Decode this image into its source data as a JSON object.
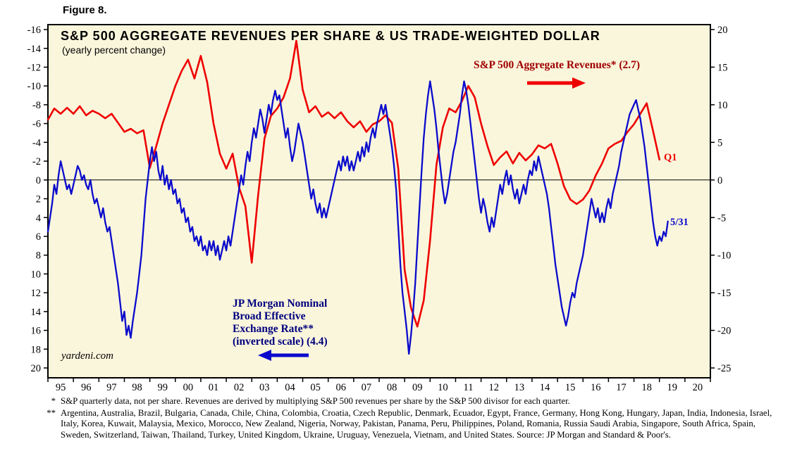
{
  "figure_label": "Figure 8.",
  "chart": {
    "title": "S&P 500 AGGREGATE REVENUES PER SHARE & US TRADE-WEIGHTED DOLLAR",
    "subtitle": "(yearly percent change)",
    "watermark": "yardeni.com",
    "annotations": {
      "revenues_label": "S&P 500 Aggregate Revenues* (2.7)",
      "revenues_latest": "Q1",
      "fx_line1": "JP Morgan Nominal",
      "fx_line2": "Broad Effective",
      "fx_line3": "Exchange Rate**",
      "fx_line4": "(inverted scale) (4.4)",
      "fx_latest": "5/31"
    },
    "colors": {
      "plot_background": "#FAF6DC",
      "revenues_line": "#EE0000",
      "revenues_text": "#A00000",
      "fx_line": "#0A0ACC",
      "fx_text": "#00007E"
    }
  },
  "chart_data": {
    "type": "line",
    "title": "S&P 500 AGGREGATE REVENUES PER SHARE & US TRADE-WEIGHTED DOLLAR",
    "subtitle": "(yearly percent change)",
    "x_tick_labels": [
      "95",
      "96",
      "97",
      "98",
      "99",
      "00",
      "01",
      "02",
      "03",
      "04",
      "05",
      "06",
      "07",
      "08",
      "09",
      "10",
      "11",
      "12",
      "13",
      "14",
      "15",
      "16",
      "17",
      "18",
      "19",
      "20"
    ],
    "x_range_years": [
      1995,
      2021
    ],
    "left_axis": {
      "ticks": [
        -16,
        -14,
        -12,
        -10,
        -8,
        -6,
        -4,
        -2,
        0,
        2,
        4,
        6,
        8,
        10,
        12,
        14,
        16,
        18,
        20
      ],
      "range": [
        -16,
        20
      ],
      "inverted": true,
      "applies_to": "JP Morgan Nominal Broad Effective Exchange Rate"
    },
    "right_axis": {
      "ticks": [
        20,
        15,
        10,
        5,
        0,
        -5,
        -10,
        -15,
        -20,
        -25
      ],
      "range": [
        -25,
        20
      ],
      "inverted": false,
      "applies_to": "S&P 500 Aggregate Revenues"
    },
    "zero_line": true,
    "legend_position": "annotations-inside-plot",
    "series": [
      {
        "id": "revenues",
        "name": "S&P 500 Aggregate Revenues (yearly % change)",
        "axis": "right",
        "color": "#EE0000",
        "width": 2.6,
        "latest_label": "Q1",
        "latest_value": 2.7,
        "start_year": 1995.0,
        "step_years": 0.25,
        "values": [
          8.0,
          9.5,
          8.8,
          9.6,
          8.8,
          9.8,
          8.6,
          9.2,
          8.8,
          8.2,
          8.8,
          7.6,
          6.4,
          6.8,
          6.2,
          6.6,
          1.6,
          4.5,
          7.5,
          10.0,
          12.5,
          14.5,
          16.0,
          13.5,
          16.5,
          13.0,
          7.5,
          3.5,
          1.5,
          3.5,
          -1.0,
          -3.5,
          -11.0,
          -2.0,
          5.5,
          8.5,
          9.5,
          11.0,
          13.5,
          18.5,
          12.0,
          9.0,
          9.8,
          8.4,
          9.0,
          8.2,
          9.0,
          7.8,
          7.0,
          7.8,
          6.4,
          7.4,
          7.8,
          8.6,
          7.6,
          1.5,
          -12.0,
          -17.0,
          -19.5,
          -16.0,
          -8.0,
          2.0,
          7.0,
          9.5,
          9.0,
          10.5,
          12.5,
          11.0,
          7.5,
          4.5,
          2.0,
          3.0,
          3.8,
          2.2,
          3.6,
          2.6,
          3.4,
          4.6,
          4.2,
          4.8,
          2.2,
          -0.8,
          -2.6,
          -3.2,
          -2.6,
          -1.4,
          0.6,
          2.2,
          4.2,
          4.8,
          5.2,
          6.4,
          7.4,
          8.8,
          10.2,
          6.5,
          2.7
        ]
      },
      {
        "id": "fx",
        "name": "JP Morgan Nominal Broad Effective Exchange Rate (yearly % change, plotted on inverted left scale)",
        "axis": "left",
        "color": "#0A0ACC",
        "width": 2.3,
        "latest_label": "5/31",
        "latest_value": 4.4,
        "start_year": 1995.0,
        "step_years": 0.0833333,
        "values": [
          5.5,
          4.0,
          2.5,
          0.5,
          1.5,
          -0.5,
          -2.0,
          -1.0,
          0.0,
          1.0,
          0.5,
          1.5,
          0.5,
          -0.5,
          -1.5,
          -1.0,
          0.0,
          -0.5,
          0.5,
          1.0,
          0.0,
          1.5,
          2.5,
          2.0,
          3.0,
          4.0,
          3.0,
          4.5,
          5.5,
          5.0,
          6.5,
          8.0,
          9.5,
          11.0,
          13.0,
          15.0,
          14.0,
          16.5,
          15.5,
          16.8,
          15.0,
          13.5,
          12.0,
          10.0,
          8.0,
          5.0,
          2.0,
          0.0,
          -2.0,
          -3.5,
          -2.0,
          -3.0,
          -1.0,
          0.0,
          -1.5,
          0.5,
          -0.5,
          1.0,
          0.0,
          1.5,
          1.0,
          2.5,
          2.0,
          3.5,
          3.0,
          4.5,
          4.0,
          5.5,
          5.0,
          6.5,
          6.0,
          7.0,
          6.0,
          7.5,
          7.0,
          8.0,
          6.5,
          7.5,
          6.5,
          8.0,
          7.0,
          8.5,
          7.5,
          6.5,
          7.5,
          6.0,
          7.0,
          5.5,
          4.0,
          2.5,
          1.0,
          -0.5,
          0.5,
          -1.5,
          -3.0,
          -2.0,
          -4.0,
          -5.5,
          -4.5,
          -6.0,
          -7.5,
          -6.5,
          -5.0,
          -6.5,
          -8.0,
          -7.0,
          -8.5,
          -9.5,
          -8.5,
          -9.0,
          -7.5,
          -6.0,
          -4.5,
          -5.5,
          -3.5,
          -2.0,
          -3.0,
          -4.5,
          -6.0,
          -5.0,
          -4.0,
          -2.5,
          -1.0,
          0.5,
          2.0,
          1.0,
          2.5,
          3.5,
          2.5,
          4.0,
          3.0,
          4.0,
          3.0,
          2.0,
          1.0,
          0.0,
          -1.0,
          -2.0,
          -1.0,
          -2.5,
          -1.5,
          -2.5,
          -1.0,
          -2.0,
          -1.0,
          -2.0,
          -3.0,
          -2.0,
          -3.5,
          -2.5,
          -4.0,
          -3.0,
          -4.5,
          -5.5,
          -4.5,
          -6.0,
          -7.0,
          -8.0,
          -7.0,
          -8.0,
          -6.5,
          -5.0,
          -3.5,
          -1.5,
          1.0,
          5.0,
          9.0,
          12.0,
          14.0,
          16.0,
          18.5,
          16.5,
          14.0,
          11.0,
          7.0,
          3.0,
          -1.0,
          -4.5,
          -7.0,
          -9.0,
          -10.5,
          -9.0,
          -7.5,
          -5.5,
          -3.0,
          -1.0,
          1.0,
          2.5,
          1.5,
          0.0,
          -1.5,
          -3.0,
          -4.0,
          -5.5,
          -7.0,
          -9.0,
          -10.5,
          -9.5,
          -8.0,
          -6.0,
          -4.0,
          -2.0,
          0.0,
          2.0,
          3.5,
          2.0,
          3.0,
          4.5,
          5.5,
          4.0,
          5.0,
          3.5,
          2.0,
          0.5,
          1.5,
          0.0,
          -1.0,
          0.5,
          -0.5,
          1.0,
          2.0,
          1.0,
          2.5,
          1.5,
          0.5,
          1.5,
          0.0,
          -1.0,
          -0.5,
          -2.0,
          -1.0,
          -2.5,
          -1.5,
          -0.5,
          0.5,
          1.5,
          3.0,
          5.0,
          7.0,
          9.0,
          10.5,
          12.0,
          13.5,
          14.5,
          15.5,
          14.5,
          13.0,
          12.0,
          12.5,
          11.0,
          10.0,
          9.0,
          8.0,
          6.5,
          5.0,
          3.5,
          2.0,
          3.0,
          4.0,
          3.0,
          4.5,
          3.5,
          4.5,
          3.0,
          2.0,
          3.0,
          1.5,
          0.5,
          -0.5,
          -1.5,
          -3.0,
          -4.0,
          -5.0,
          -6.0,
          -7.0,
          -7.5,
          -8.0,
          -8.5,
          -7.5,
          -6.5,
          -5.0,
          -3.5,
          -1.5,
          0.5,
          2.5,
          4.5,
          6.0,
          7.0,
          6.0,
          6.5,
          5.5,
          6.0,
          4.4
        ]
      }
    ]
  },
  "footnotes": [
    {
      "marker": "*",
      "text": "S&P quarterly data, not per share. Revenues are derived by multiplying S&P 500 revenues per share by the S&P 500 divisor for each quarter."
    },
    {
      "marker": "**",
      "text": "Argentina, Australia, Brazil, Bulgaria, Canada, Chile, China, Colombia, Croatia, Czech Republic, Denmark, Ecuador, Egypt, France, Germany, Hong Kong, Hungary, Japan, India, Indonesia, Israel, Italy, Korea, Kuwait, Malaysia, Mexico, Morocco, New Zealand, Nigeria, Norway, Pakistan, Panama, Peru, Philippines, Poland, Romania, Russia Saudi Arabia, Singapore, South Africa, Spain, Sweden, Switzerland, Taiwan, Thailand, Turkey, United Kingdom, Ukraine, Uruguay, Venezuela, Vietnam, and United States. Source: JP Morgan and Standard & Poor's."
    }
  ]
}
